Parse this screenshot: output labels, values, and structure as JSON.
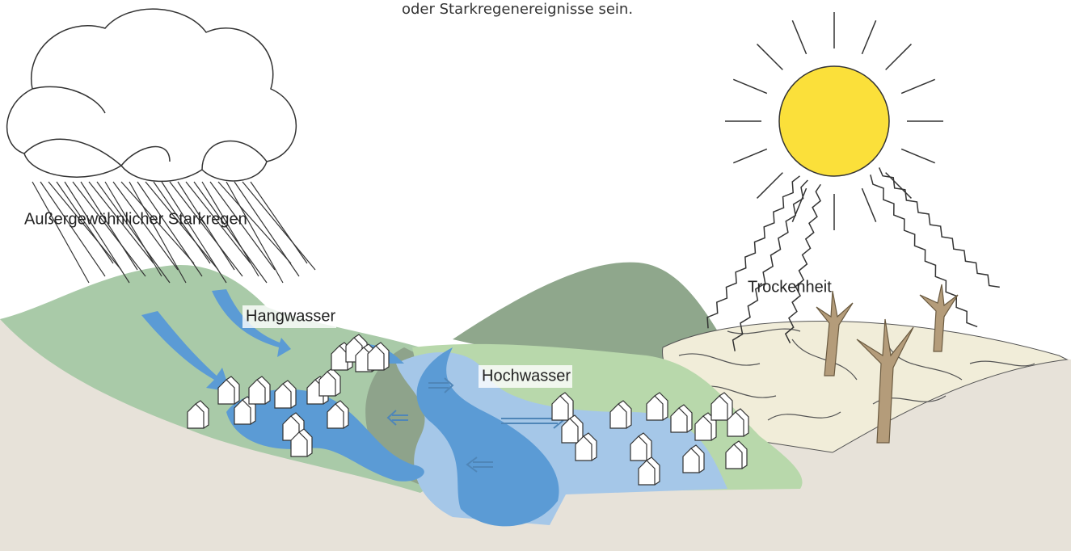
{
  "caption_tail": "oder Starkregenereignisse sein.",
  "labels": {
    "rain": "Außergewöhnlicher Starkregen",
    "slope_water": "Hangwasser",
    "flood": "Hochwasser",
    "drought": "Trockenheit"
  }
}
